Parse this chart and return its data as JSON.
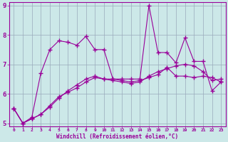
{
  "x": [
    0,
    1,
    2,
    3,
    4,
    5,
    6,
    7,
    8,
    9,
    10,
    11,
    12,
    13,
    14,
    15,
    16,
    17,
    18,
    19,
    20,
    21,
    22,
    23
  ],
  "line1": [
    5.5,
    5.0,
    5.2,
    6.7,
    7.5,
    7.8,
    7.75,
    7.65,
    7.95,
    7.5,
    7.5,
    6.5,
    6.5,
    6.5,
    6.5,
    9.0,
    7.4,
    7.4,
    7.05,
    7.9,
    7.1,
    7.1,
    6.1,
    6.4
  ],
  "line2": [
    5.5,
    5.0,
    5.15,
    5.3,
    5.55,
    5.85,
    6.1,
    6.3,
    6.5,
    6.6,
    6.5,
    6.5,
    6.45,
    6.4,
    6.45,
    6.55,
    6.65,
    6.9,
    6.6,
    6.6,
    6.55,
    6.6,
    6.55,
    6.4
  ],
  "line3": [
    5.5,
    5.0,
    5.15,
    5.3,
    5.6,
    5.9,
    6.05,
    6.2,
    6.4,
    6.55,
    6.5,
    6.45,
    6.4,
    6.35,
    6.4,
    6.6,
    6.75,
    6.85,
    6.95,
    7.0,
    6.95,
    6.75,
    6.45,
    6.5
  ],
  "ylim": [
    5,
    9
  ],
  "xlim": [
    -0.5,
    23.5
  ],
  "yticks": [
    5,
    6,
    7,
    8,
    9
  ],
  "xticks": [
    0,
    1,
    2,
    3,
    4,
    5,
    6,
    7,
    8,
    9,
    10,
    11,
    12,
    13,
    14,
    15,
    16,
    17,
    18,
    19,
    20,
    21,
    22,
    23
  ],
  "xlabel": "Windchill (Refroidissement éolien,°C)",
  "line_color": "#990099",
  "bg_color": "#cce8e8",
  "grid_color": "#99aabb"
}
